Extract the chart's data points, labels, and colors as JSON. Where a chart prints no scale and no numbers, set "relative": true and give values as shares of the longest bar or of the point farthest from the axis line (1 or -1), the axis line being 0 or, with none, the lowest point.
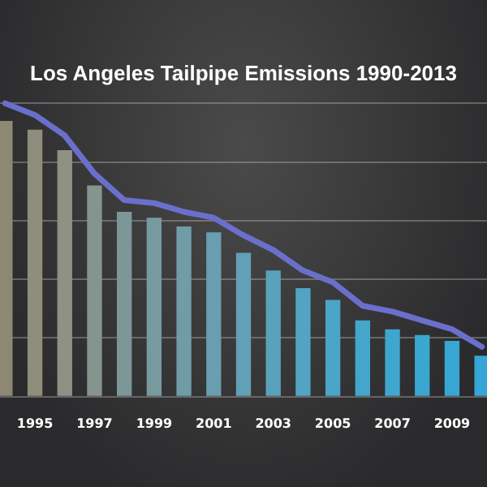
{
  "chart_data": {
    "type": "bar",
    "title": "Los Angeles Tailpipe Emissions 1990-2013",
    "relative": true,
    "grid": "y",
    "legend": false,
    "categories": [
      null,
      "1995",
      null,
      "1997",
      null,
      "1999",
      null,
      "2001",
      null,
      "2003",
      null,
      "2005",
      null,
      "2007",
      null,
      "2009",
      null
    ],
    "series": [
      {
        "colors": [
          "#8c8873",
          "#8f8e7c",
          "#8d9284",
          "#85958e",
          "#7d9798",
          "#779a9f",
          "#6f9ca7",
          "#689eaf",
          "#62a0b6",
          "#5aa2bc",
          "#52a4c2",
          "#4aa5c7",
          "#44a6ca",
          "#3fa6cd",
          "#3ba6d0",
          "#38a6d2",
          "#35a6d5"
        ],
        "values": [
          0.94,
          0.91,
          0.84,
          0.72,
          0.63,
          0.61,
          0.58,
          0.56,
          0.49,
          0.43,
          0.37,
          0.33,
          0.26,
          0.23,
          0.21,
          0.19,
          0.14
        ]
      },
      {
        "type": "line",
        "color": "#6b6fcc",
        "marker": "none",
        "line_style": "solid",
        "values": [
          1,
          0.96,
          0.89,
          0.76,
          0.67,
          0.66,
          0.63,
          0.61,
          0.55,
          0.5,
          0.43,
          0.39,
          0.31,
          0.29,
          0.26,
          0.23,
          0.17
        ]
      }
    ]
  }
}
